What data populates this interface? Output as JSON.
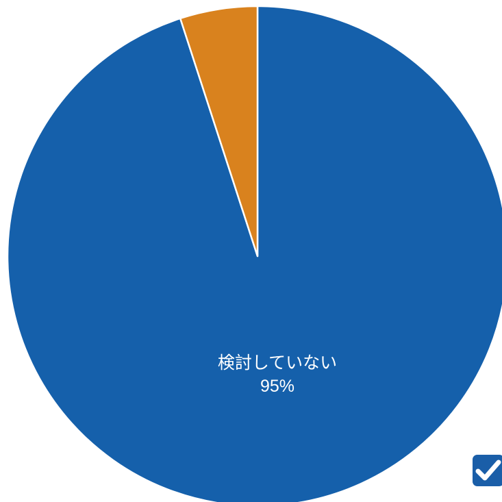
{
  "chart_data": {
    "type": "pie",
    "start": "top",
    "direction": "clockwise",
    "slices": [
      {
        "label": "検討していない",
        "value": 95,
        "value_label": "95%",
        "color": "#1560ab"
      },
      {
        "label": "",
        "value": 5,
        "value_label": "",
        "color": "#d9821e"
      }
    ]
  },
  "overlay": {
    "icon": "checkmark-icon",
    "color": "#1a5ea8"
  }
}
